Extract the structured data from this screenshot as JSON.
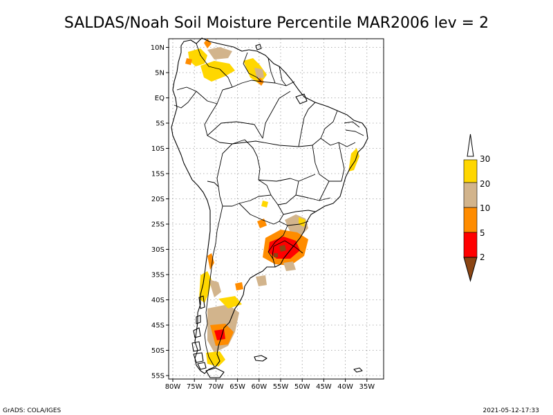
{
  "title": "SALDAS/Noah Soil Moisture Percentile MAR2006 lev = 2",
  "footer": {
    "left": "GrADS: COLA/IGES",
    "right": "2021-05-12-17:33"
  },
  "lat_ticks": [
    "10N",
    "5N",
    "EQ",
    "5S",
    "10S",
    "15S",
    "20S",
    "25S",
    "30S",
    "35S",
    "40S",
    "45S",
    "50S",
    "55S"
  ],
  "lon_ticks": [
    "80W",
    "75W",
    "70W",
    "65W",
    "60W",
    "55W",
    "50W",
    "45W",
    "40W",
    "35W"
  ],
  "legend": {
    "labels": [
      "2",
      "5",
      "10",
      "20",
      "30"
    ],
    "colors": {
      "below_2": "#8b4513",
      "2_to_5": "#ff0000",
      "5_to_10": "#ff8c00",
      "10_to_20": "#d2b48c",
      "20_to_30": "#ffd700",
      "above_30": "#ffffff"
    }
  },
  "dry_patch_colors": {
    "light": "#ffd700",
    "tan": "#d2b48c",
    "orange": "#ff8c00",
    "red": "#ff0000"
  }
}
